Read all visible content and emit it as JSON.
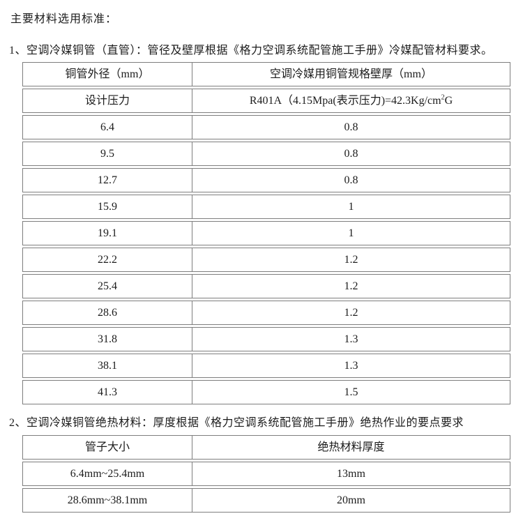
{
  "page": {
    "title": "主要材料选用标准：",
    "section1_label": "1、空调冷媒铜管（直管）：管径及壁厚根据《格力空调系统配管施工手册》冷媒配管材料要求。",
    "section2_label": "2、空调冷媒铜管绝热材料：厚度根据《格力空调系统配管施工手册》绝热作业的要点要求"
  },
  "colors": {
    "border": "#7e7e7e",
    "text": "#1c1c1c",
    "background": "#ffffff"
  },
  "table1": {
    "headers": [
      "铜管外径（mm）",
      "空调冷媒用铜管规格壁厚（mm）"
    ],
    "design_pressure_row": {
      "label": "设计压力",
      "value_prefix": "R401A（4.15Mpa(表示压力)=42.3Kg/cm",
      "value_sup": "2",
      "value_suffix": "G"
    },
    "rows": [
      {
        "od": "6.4",
        "thk": "0.8"
      },
      {
        "od": "9.5",
        "thk": "0.8"
      },
      {
        "od": "12.7",
        "thk": "0.8"
      },
      {
        "od": "15.9",
        "thk": "1"
      },
      {
        "od": "19.1",
        "thk": "1"
      },
      {
        "od": "22.2",
        "thk": "1.2"
      },
      {
        "od": "25.4",
        "thk": "1.2"
      },
      {
        "od": "28.6",
        "thk": "1.2"
      },
      {
        "od": "31.8",
        "thk": "1.3"
      },
      {
        "od": "38.1",
        "thk": "1.3"
      },
      {
        "od": "41.3",
        "thk": "1.5"
      }
    ]
  },
  "table2": {
    "headers": [
      "管子大小",
      "绝热材料厚度"
    ],
    "rows": [
      {
        "size": "6.4mm~25.4mm",
        "thickness": "13mm"
      },
      {
        "size": "28.6mm~38.1mm",
        "thickness": "20mm"
      }
    ]
  }
}
